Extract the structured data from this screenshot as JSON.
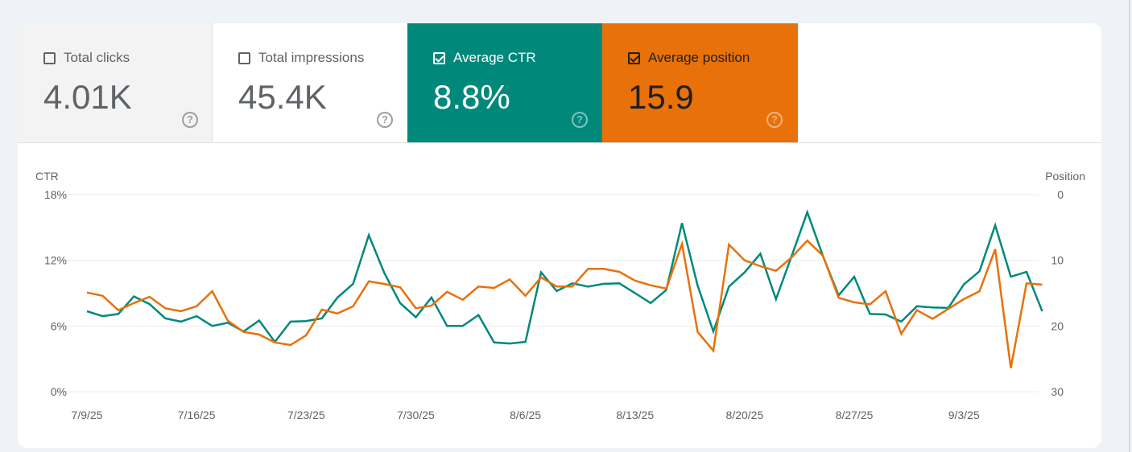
{
  "metrics": [
    {
      "label": "Total clicks",
      "value": "4.01K",
      "checked": false
    },
    {
      "label": "Total impressions",
      "value": "45.4K",
      "checked": false
    },
    {
      "label": "Average CTR",
      "value": "8.8%",
      "checked": true
    },
    {
      "label": "Average position",
      "value": "15.9",
      "checked": true
    }
  ],
  "colors": {
    "ctr": "#00897b",
    "position": "#e8710a"
  },
  "chart_data": {
    "type": "line",
    "left_axis_title": "CTR",
    "right_axis_title": "Position",
    "left_ticks": [
      "18%",
      "12%",
      "6%",
      "0%"
    ],
    "right_ticks": [
      "0",
      "10",
      "20",
      "30"
    ],
    "left_range": [
      0,
      18
    ],
    "right_range": [
      0,
      30
    ],
    "right_inverted": true,
    "x_tick_labels": [
      "7/9/25",
      "7/16/25",
      "7/23/25",
      "7/30/25",
      "8/6/25",
      "8/13/25",
      "8/20/25",
      "8/27/25",
      "9/3/25"
    ],
    "x_start": "7/9/25",
    "x_end": "9/8/25",
    "grid": true,
    "series": [
      {
        "name": "Average CTR",
        "axis": "left",
        "unit": "%",
        "values": [
          7.35,
          6.9,
          7.1,
          8.7,
          8.0,
          6.7,
          6.4,
          6.9,
          6.0,
          6.3,
          5.5,
          6.5,
          4.55,
          6.4,
          6.45,
          6.7,
          8.6,
          9.85,
          14.3,
          10.8,
          8.1,
          6.8,
          8.6,
          6.0,
          6.0,
          7.0,
          4.5,
          4.4,
          4.55,
          10.9,
          9.2,
          9.9,
          9.6,
          9.85,
          9.9,
          9.0,
          8.1,
          9.3,
          15.4,
          9.7,
          5.5,
          9.6,
          10.9,
          12.6,
          8.45,
          12.4,
          16.4,
          12.4,
          8.8,
          10.5,
          7.1,
          7.05,
          6.4,
          7.8,
          7.7,
          7.65,
          9.8,
          11.0,
          15.2,
          10.5,
          10.95,
          7.35
        ]
      },
      {
        "name": "Average position",
        "axis": "right",
        "unit": "",
        "values": [
          14.9,
          15.4,
          17.6,
          16.5,
          15.55,
          17.3,
          17.75,
          17.0,
          14.7,
          19.2,
          20.9,
          21.3,
          22.5,
          22.9,
          21.4,
          17.5,
          18.1,
          17.0,
          13.2,
          13.6,
          14.1,
          17.3,
          16.9,
          14.8,
          16.0,
          14.0,
          14.2,
          12.9,
          15.4,
          12.6,
          14.0,
          14.0,
          11.3,
          11.3,
          11.75,
          13.1,
          13.8,
          14.3,
          7.5,
          20.9,
          23.75,
          7.6,
          10.0,
          10.9,
          11.6,
          9.55,
          7.0,
          9.3,
          15.7,
          16.4,
          16.7,
          14.7,
          21.2,
          17.6,
          18.9,
          17.4,
          15.9,
          14.7,
          8.3,
          26.4,
          13.5,
          13.7
        ]
      }
    ]
  }
}
